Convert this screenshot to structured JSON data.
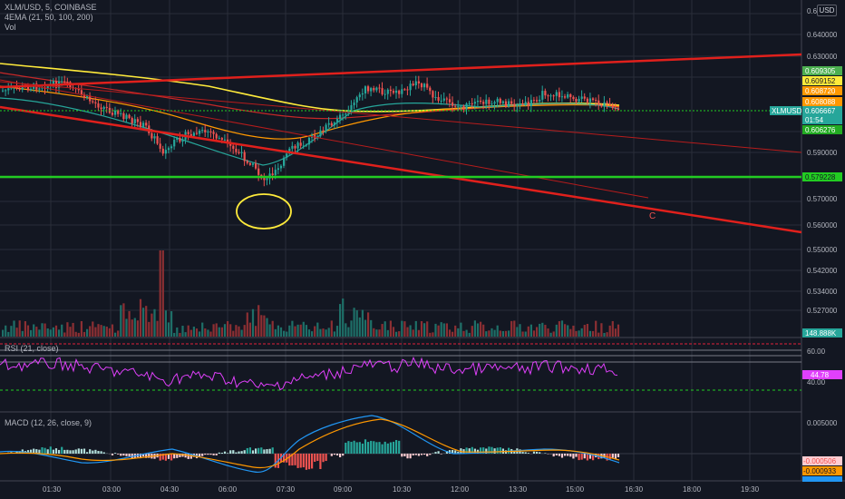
{
  "header": {
    "symbol_line": "XLM/USD, 5, COINBASE",
    "indicator_4ema": "4EMA (21, 50, 100, 200)",
    "indicator_vol": "Vol",
    "currency": "USD"
  },
  "main_axis": {
    "ticks": [
      "0.640000",
      "0.630000",
      "0.590000",
      "0.580000",
      "0.570000",
      "0.560000",
      "0.550000",
      "0.542000",
      "0.534000",
      "0.527000"
    ]
  },
  "price_labels": [
    {
      "text": "0.609305",
      "color": "#4caf50",
      "text_color": "#ffffff"
    },
    {
      "text": "0.609152",
      "color": "#ffeb3b",
      "text_color": "#131722"
    },
    {
      "text": "0.608720",
      "color": "#ff9800",
      "text_color": "#ffffff"
    },
    {
      "text": "0.608088",
      "color": "#ff9800",
      "text_color": "#ffffff"
    },
    {
      "text": "0.606667",
      "color": "#26a69a",
      "text_color": "#ffffff"
    },
    {
      "text": "01:54",
      "color": "#26a69a",
      "text_color": "#ffffff"
    },
    {
      "text": "0.606276",
      "color": "#22ab22",
      "text_color": "#ffffff"
    },
    {
      "text": "0.579228",
      "color": "#22cc22",
      "text_color": "#131722"
    },
    {
      "text": "148.888K",
      "color": "#26a69a",
      "text_color": "#ffffff"
    }
  ],
  "symbol_tag": "XLMUSD",
  "annotation_letter": "C",
  "rsi": {
    "legend": "RSI (21, close)",
    "ticks": [
      "60.00",
      "40.00"
    ],
    "value_label": "44.78",
    "value_color": "#e040fb"
  },
  "macd": {
    "legend": "MACD (12, 26, close, 9)",
    "ticks": [
      "0.005000",
      "0.000000"
    ],
    "labels": [
      {
        "text": "-0.000506",
        "color": "#ffcdd2",
        "text_color": "#ef5350"
      },
      {
        "text": "-0.000933",
        "color": "#ff9800",
        "text_color": "#131722"
      },
      {
        "text": "-0.00142?",
        "color": "#2196f3",
        "text_color": "#ffffff"
      }
    ]
  },
  "time_axis": {
    "labels": [
      "01:30",
      "03:00",
      "04:30",
      "06:00",
      "07:30",
      "09:00",
      "10:30",
      "12:00",
      "13:30",
      "15:00",
      "16:30",
      "18:00",
      "19:30"
    ]
  },
  "colors": {
    "background": "#131722",
    "grid": "#2a2e39",
    "up": "#26a69a",
    "down": "#ef5350",
    "trendline": "#e0201c",
    "support": "#22cc22",
    "ema21": "#26a69a",
    "ema50": "#ff9800",
    "ema100": "#c62828",
    "ema200": "#ffeb3b",
    "rsi_line": "#e040fb",
    "annotation": "#ffeb3b"
  }
}
